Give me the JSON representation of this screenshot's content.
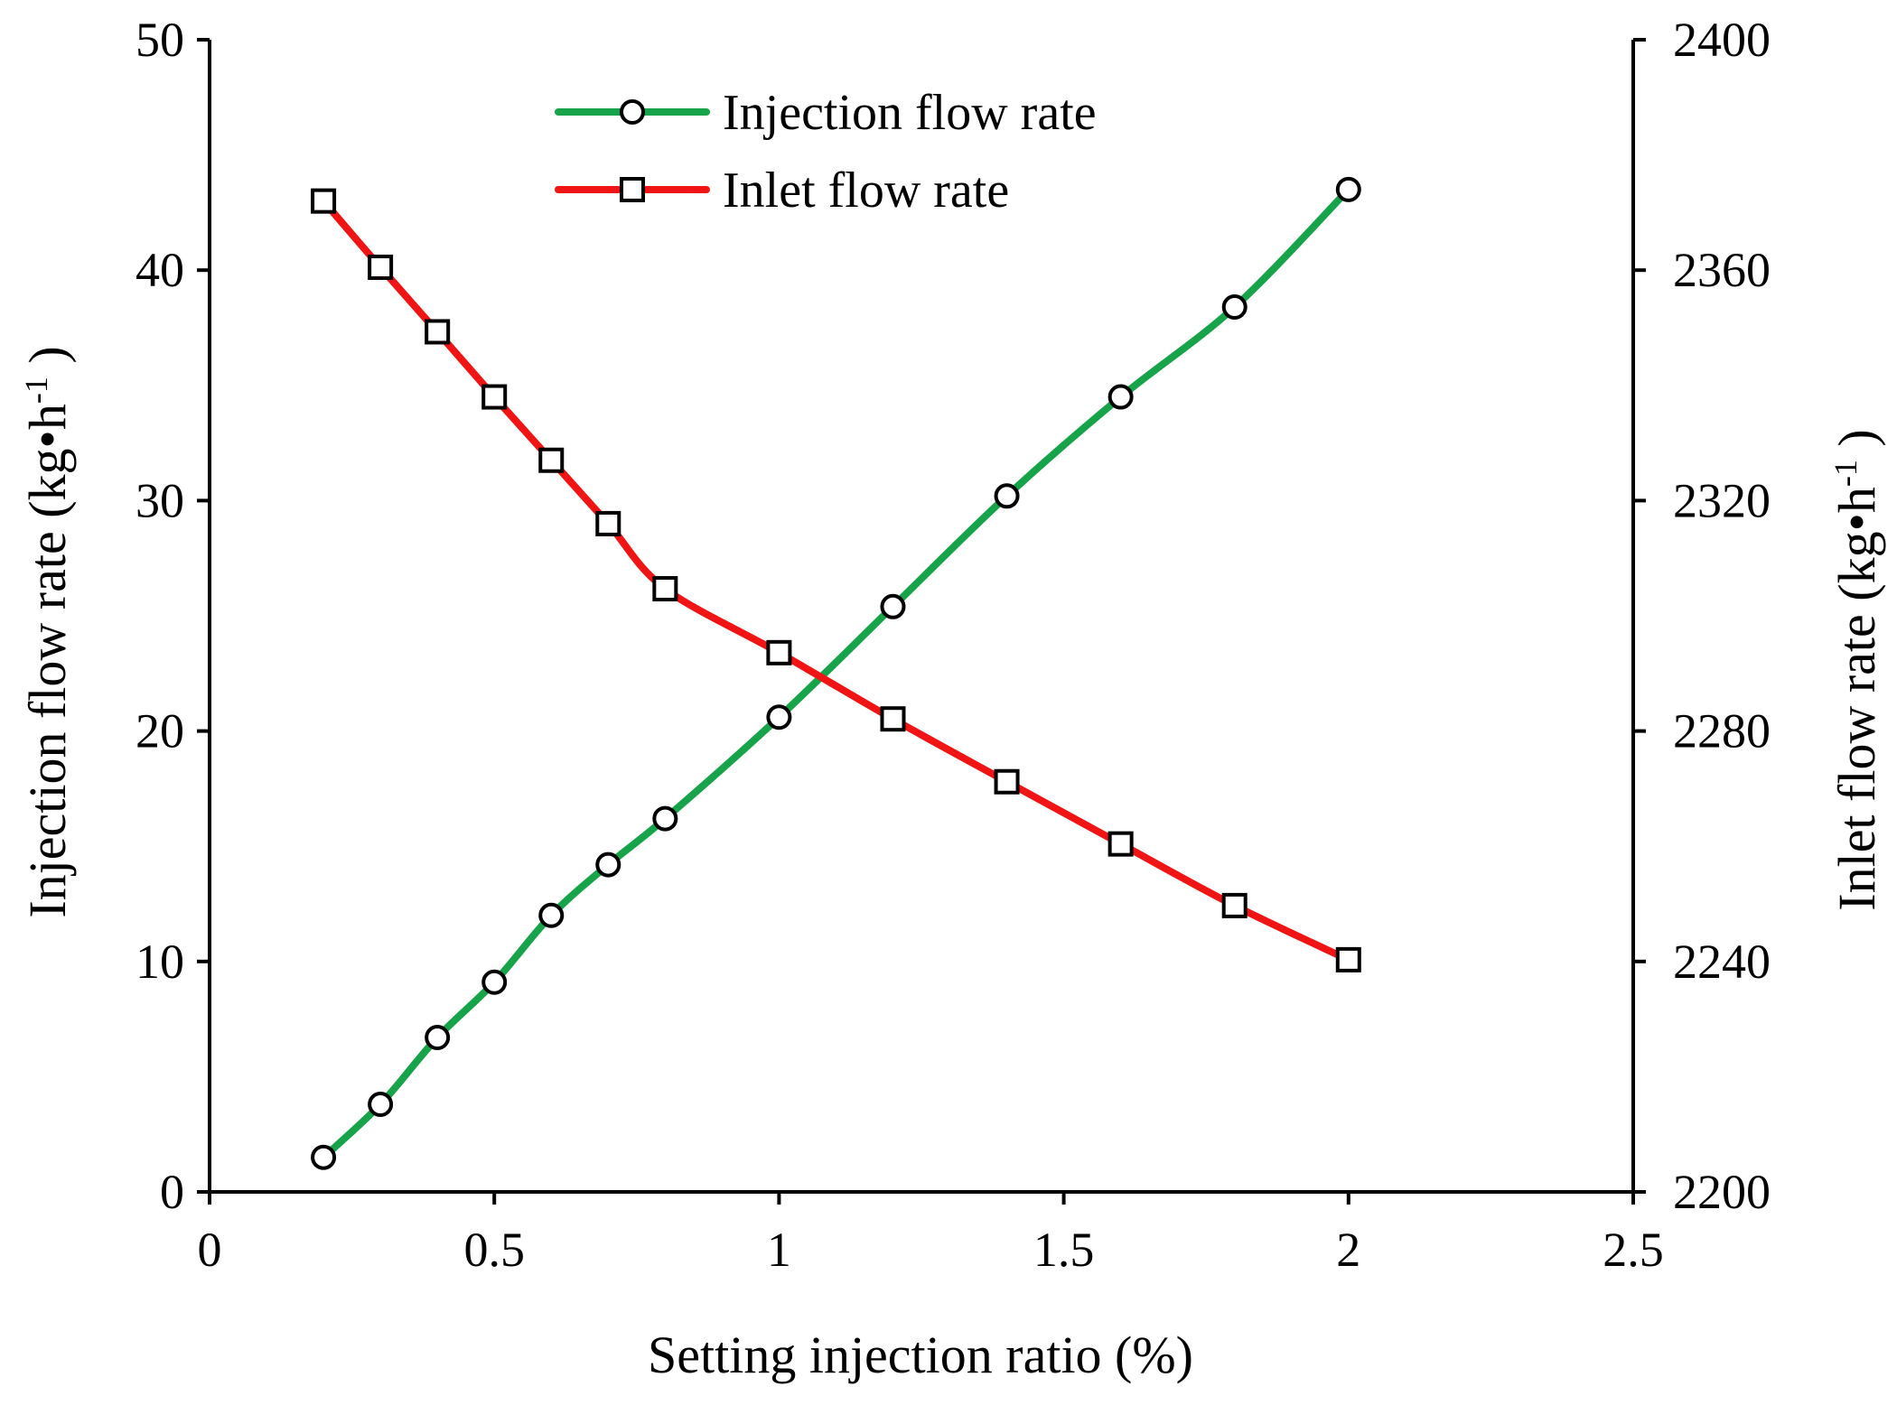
{
  "chart_data": {
    "type": "line",
    "title": "",
    "xlabel": "Setting injection ratio (%)",
    "ylabel": {
      "main": "Injection flow rate (kg•h",
      "sup": "-1",
      "end": " )"
    },
    "y2label": {
      "main": "Inlet flow rate (kg•h",
      "sup": "-1",
      "end": " )"
    },
    "xlim": [
      0,
      2.5
    ],
    "ylim": [
      0,
      50
    ],
    "y2lim": [
      2200,
      2400
    ],
    "xticks": [
      "0",
      "0.5",
      "1",
      "1.5",
      "2",
      "2.5"
    ],
    "xtick_values": [
      0,
      0.5,
      1,
      1.5,
      2,
      2.5
    ],
    "yticks": [
      "0",
      "10",
      "20",
      "30",
      "40",
      "50"
    ],
    "ytick_values": [
      0,
      10,
      20,
      30,
      40,
      50
    ],
    "y2ticks": [
      "2200",
      "2240",
      "2280",
      "2320",
      "2360",
      "2400"
    ],
    "y2tick_values": [
      2200,
      2240,
      2280,
      2320,
      2360,
      2400
    ],
    "grid": false,
    "legend_position": "top-center",
    "series": [
      {
        "name": "Injection flow rate",
        "axis": "left",
        "color": "#17a34a",
        "marker": "circle",
        "x": [
          0.2,
          0.3,
          0.4,
          0.5,
          0.6,
          0.7,
          0.8,
          1.0,
          1.2,
          1.4,
          1.6,
          1.8,
          2.0
        ],
        "y": [
          1.5,
          3.8,
          6.7,
          9.1,
          12.0,
          14.2,
          16.2,
          20.6,
          25.4,
          30.2,
          34.5,
          38.4,
          43.5
        ]
      },
      {
        "name": "Inlet flow rate",
        "axis": "right",
        "color": "#f01414",
        "marker": "square",
        "x": [
          0.2,
          0.3,
          0.4,
          0.5,
          0.6,
          0.7,
          0.8,
          1.0,
          1.2,
          1.4,
          1.6,
          1.8,
          2.0
        ],
        "y": [
          2372,
          2360.5,
          2349.3,
          2338,
          2327,
          2316,
          2304.7,
          2293.6,
          2282.1,
          2271.2,
          2260.4,
          2249.7,
          2240.3
        ]
      }
    ]
  }
}
